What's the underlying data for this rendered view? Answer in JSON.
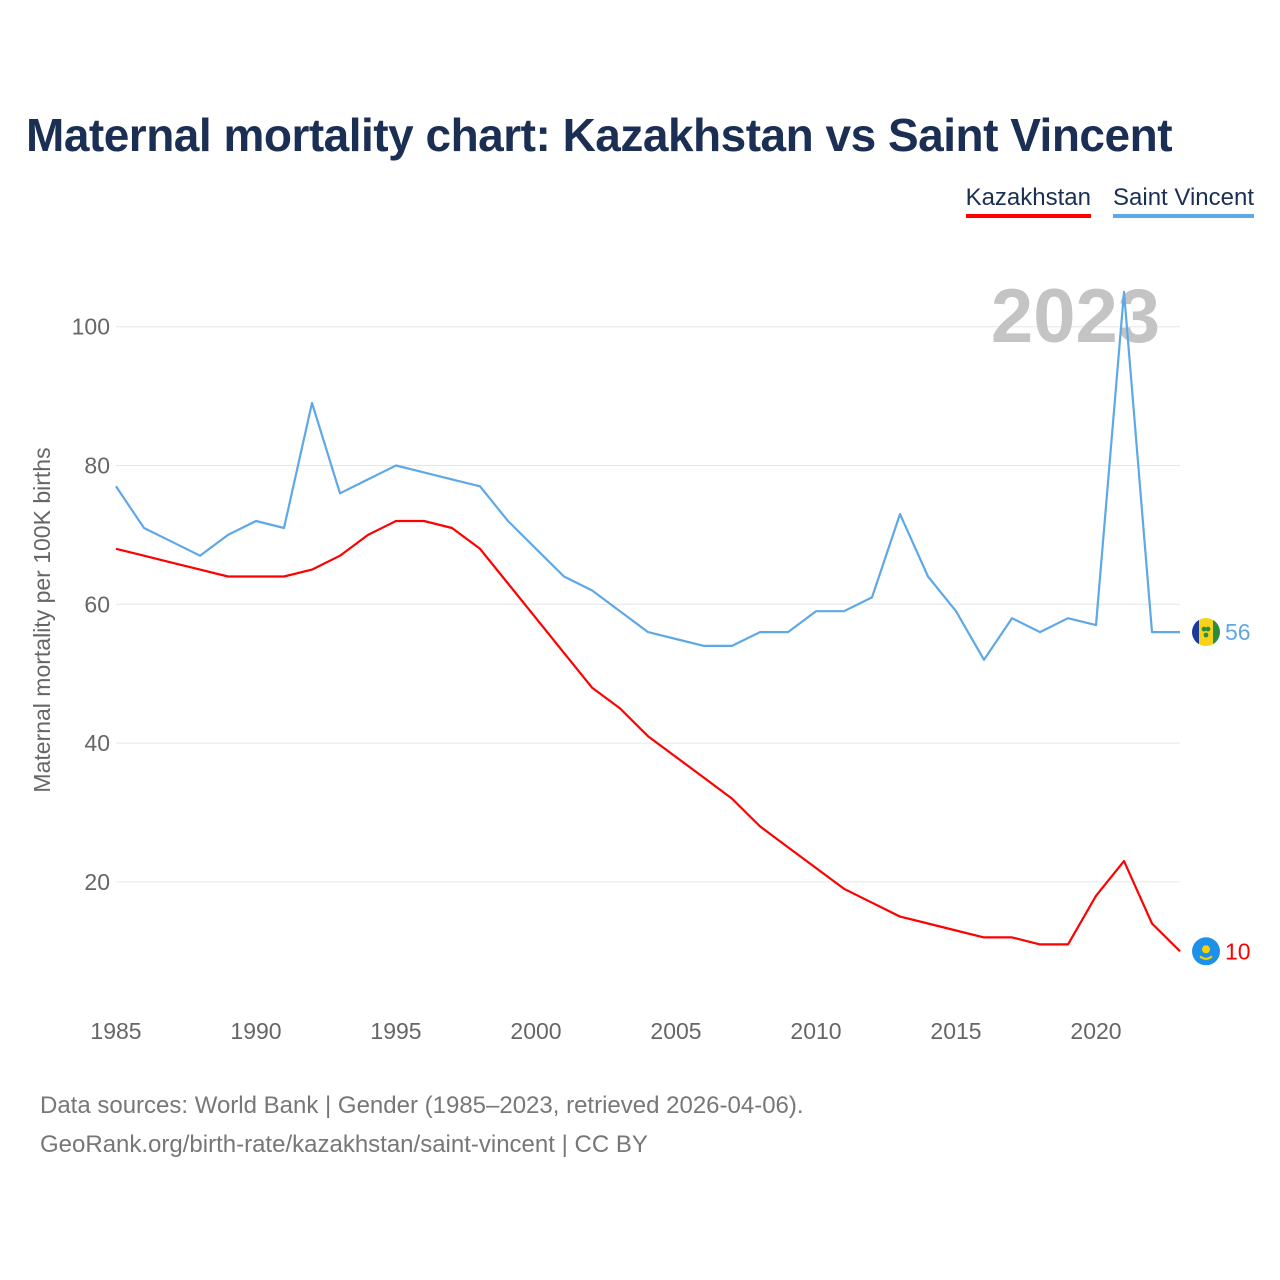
{
  "title": "Maternal mortality chart: Kazakhstan vs Saint Vincent",
  "legend": [
    {
      "label": "Kazakhstan",
      "color": "#ff0000"
    },
    {
      "label": "Saint Vincent",
      "color": "#5ea8e8"
    }
  ],
  "year_label": "2023",
  "source_line1": "Data sources: World Bank | Gender (1985–2023, retrieved 2026-04-06).",
  "source_line2": "GeoRank.org/birth-rate/kazakhstan/saint-vincent | CC BY",
  "chart_data": {
    "type": "line",
    "title": "Maternal mortality chart: Kazakhstan vs Saint Vincent",
    "xlabel": "",
    "ylabel": "Maternal mortality per 100K births",
    "xlim": [
      1985,
      2023
    ],
    "ylim": [
      5,
      105
    ],
    "xticks": [
      1985,
      1990,
      1995,
      2000,
      2005,
      2010,
      2015,
      2020
    ],
    "yticks": [
      20,
      40,
      60,
      80,
      100
    ],
    "grid": true,
    "x": [
      1985,
      1986,
      1987,
      1988,
      1989,
      1990,
      1991,
      1992,
      1993,
      1994,
      1995,
      1996,
      1997,
      1998,
      1999,
      2000,
      2001,
      2002,
      2003,
      2004,
      2005,
      2006,
      2007,
      2008,
      2009,
      2010,
      2011,
      2012,
      2013,
      2014,
      2015,
      2016,
      2017,
      2018,
      2019,
      2020,
      2021,
      2022,
      2023
    ],
    "series": [
      {
        "name": "Kazakhstan",
        "color": "#ff0000",
        "end_label": "10",
        "flag": "kazakhstan-flag",
        "values": [
          68,
          67,
          66,
          65,
          64,
          64,
          64,
          65,
          67,
          70,
          72,
          72,
          71,
          68,
          63,
          58,
          53,
          48,
          45,
          41,
          38,
          35,
          32,
          28,
          25,
          22,
          19,
          17,
          15,
          14,
          13,
          12,
          12,
          11,
          11,
          18,
          23,
          14,
          10
        ]
      },
      {
        "name": "Saint Vincent",
        "color": "#5ea8e8",
        "end_label": "56",
        "flag": "saint-vincent-flag",
        "values": [
          77,
          71,
          69,
          67,
          70,
          72,
          71,
          89,
          76,
          78,
          80,
          79,
          78,
          77,
          72,
          68,
          64,
          62,
          59,
          56,
          55,
          54,
          54,
          56,
          56,
          59,
          59,
          61,
          73,
          64,
          59,
          52,
          58,
          56,
          58,
          57,
          105,
          56,
          56
        ]
      }
    ]
  }
}
